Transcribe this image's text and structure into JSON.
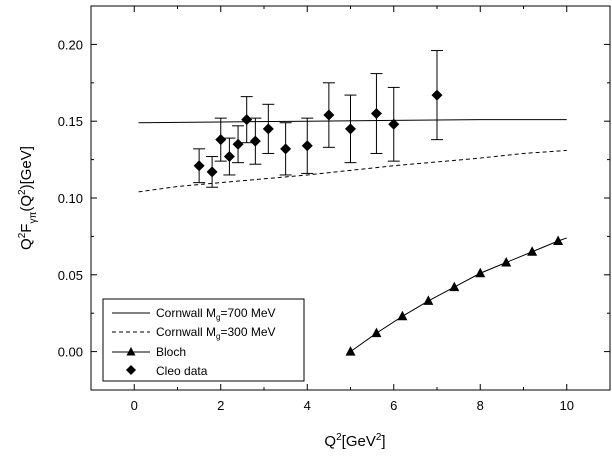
{
  "chart_data": {
    "type": "scatter",
    "xlabel": "Q²[GeV²]",
    "ylabel": "Q²F_γπ(Q²)[GeV]",
    "xlim": [
      -1,
      11
    ],
    "ylim": [
      -0.025,
      0.225
    ],
    "x_ticks": [
      0,
      2,
      4,
      6,
      8,
      10
    ],
    "x_tick_labels": [
      "0",
      "2",
      "4",
      "6",
      "8",
      "10"
    ],
    "y_ticks": [
      0.0,
      0.05,
      0.1,
      0.15,
      0.2
    ],
    "y_tick_labels": [
      "0.00",
      "0.05",
      "0.10",
      "0.15",
      "0.20"
    ],
    "grid": false,
    "legend_position": "bottom-left",
    "series": [
      {
        "name": "Cornwall M_g=700 MeV",
        "style": "solid-line",
        "x": [
          0.1,
          2,
          4,
          6,
          8,
          10
        ],
        "y": [
          0.149,
          0.1495,
          0.15,
          0.1505,
          0.151,
          0.151
        ]
      },
      {
        "name": "Cornwall M_g=300 MeV",
        "style": "dashed-line",
        "x": [
          0.1,
          1,
          2,
          3,
          4,
          5,
          6,
          7,
          8,
          9,
          10
        ],
        "y": [
          0.104,
          0.1075,
          0.11,
          0.1125,
          0.115,
          0.118,
          0.121,
          0.1235,
          0.126,
          0.129,
          0.131
        ]
      },
      {
        "name": "Bloch",
        "style": "line-triangles",
        "x": [
          5.0,
          5.6,
          6.2,
          6.8,
          7.4,
          8.0,
          8.6,
          9.2,
          9.8
        ],
        "y": [
          0.0,
          0.012,
          0.023,
          0.033,
          0.042,
          0.051,
          0.058,
          0.065,
          0.072
        ],
        "line_end": [
          10.0,
          0.074
        ]
      },
      {
        "name": "Cleo data",
        "style": "diamonds-errorbars",
        "x": [
          1.5,
          1.8,
          2.0,
          2.2,
          2.4,
          2.6,
          2.8,
          3.1,
          3.5,
          4.0,
          4.5,
          5.0,
          5.6,
          6.0,
          7.0
        ],
        "y": [
          0.121,
          0.117,
          0.138,
          0.127,
          0.135,
          0.151,
          0.137,
          0.145,
          0.132,
          0.134,
          0.154,
          0.145,
          0.155,
          0.148,
          0.167
        ],
        "err": [
          0.011,
          0.01,
          0.014,
          0.012,
          0.012,
          0.015,
          0.015,
          0.016,
          0.017,
          0.018,
          0.021,
          0.022,
          0.026,
          0.024,
          0.029
        ]
      }
    ]
  },
  "legend": {
    "items": [
      {
        "prefix": "Cornwall M",
        "sub": "g",
        "suffix": "=700 MeV",
        "style": "solid-line"
      },
      {
        "prefix": "Cornwall M",
        "sub": "g",
        "suffix": "=300 MeV",
        "style": "dashed-line"
      },
      {
        "prefix": "Bloch",
        "sub": "",
        "suffix": "",
        "style": "line-triangles"
      },
      {
        "prefix": "Cleo data",
        "sub": "",
        "suffix": "",
        "style": "diamonds-errorbars"
      }
    ]
  },
  "ylabel_parts": {
    "q": "Q",
    "sq": "2",
    "f": "F",
    "sub": "γπ",
    "open": "(Q",
    "sq2": "2",
    "close": ")[GeV]"
  },
  "xlabel_parts": {
    "q": "Q",
    "sq": "2",
    "mid": "[GeV",
    "sq2": "2",
    "close": "]"
  }
}
